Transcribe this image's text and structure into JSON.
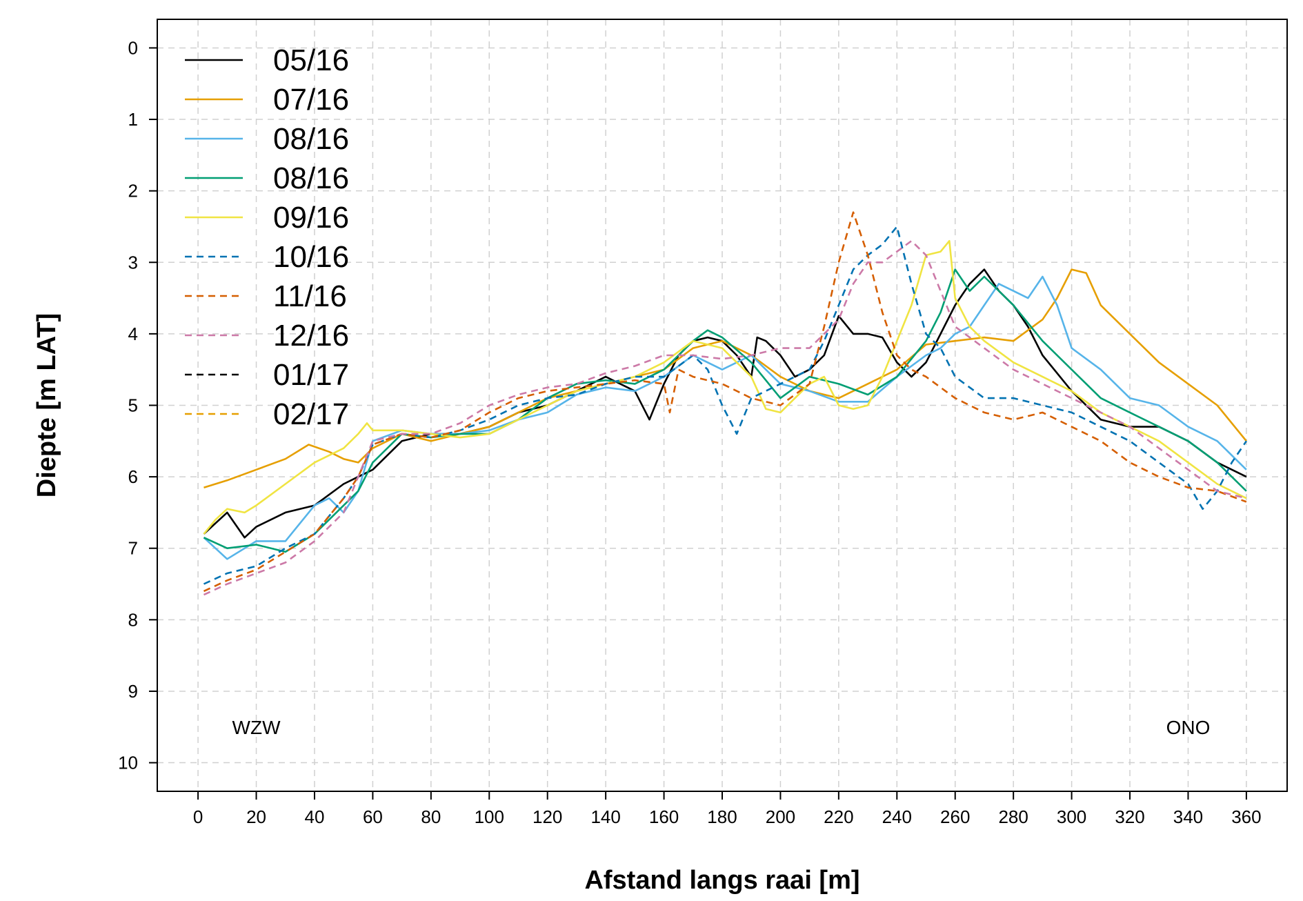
{
  "chart_data": {
    "type": "line",
    "title": "",
    "xlabel": "Afstand langs raai [m]",
    "ylabel": "Diepte [m LAT]",
    "xlim": [
      -14,
      374
    ],
    "ylim": [
      -0.4,
      10.4
    ],
    "y_inverted": true,
    "xticks": [
      0,
      20,
      40,
      60,
      80,
      100,
      120,
      140,
      160,
      180,
      200,
      220,
      240,
      260,
      280,
      300,
      320,
      340,
      360
    ],
    "yticks": [
      0,
      1,
      2,
      3,
      4,
      5,
      6,
      7,
      8,
      9,
      10
    ],
    "grid": true,
    "legend_position": "top-left",
    "annotations": [
      {
        "text": "WZW",
        "x": 20,
        "y": 9.5
      },
      {
        "text": "ONO",
        "x": 340,
        "y": 9.5
      }
    ],
    "series": [
      {
        "name": "05/16",
        "color": "#000000",
        "dash": "solid",
        "x": [
          2,
          10,
          16,
          20,
          30,
          40,
          50,
          55,
          60,
          70,
          80,
          90,
          100,
          110,
          120,
          130,
          140,
          150,
          155,
          160,
          165,
          170,
          175,
          180,
          185,
          190,
          192,
          195,
          200,
          205,
          210,
          215,
          220,
          225,
          230,
          235,
          240,
          245,
          250,
          255,
          260,
          265,
          270,
          275,
          280,
          285,
          290,
          300,
          310,
          320,
          330,
          340,
          350,
          360
        ],
        "y": [
          6.8,
          6.5,
          6.85,
          6.7,
          6.5,
          6.4,
          6.1,
          6.0,
          5.9,
          5.5,
          5.4,
          5.4,
          5.3,
          5.1,
          5.0,
          4.8,
          4.6,
          4.8,
          5.2,
          4.7,
          4.3,
          4.1,
          4.05,
          4.1,
          4.3,
          4.6,
          4.05,
          4.1,
          4.3,
          4.6,
          4.5,
          4.3,
          3.75,
          4.0,
          4.0,
          4.05,
          4.4,
          4.6,
          4.4,
          4.0,
          3.6,
          3.3,
          3.1,
          3.4,
          3.6,
          3.9,
          4.3,
          4.8,
          5.2,
          5.3,
          5.3,
          5.5,
          5.8,
          6.0
        ]
      },
      {
        "name": "07/16",
        "color": "#E69F00",
        "dash": "solid",
        "x": [
          2,
          10,
          20,
          30,
          38,
          45,
          50,
          55,
          60,
          70,
          80,
          90,
          100,
          110,
          120,
          130,
          140,
          150,
          160,
          170,
          180,
          190,
          200,
          210,
          220,
          230,
          240,
          250,
          260,
          270,
          280,
          290,
          295,
          300,
          305,
          310,
          320,
          330,
          340,
          350,
          360
        ],
        "y": [
          6.15,
          6.05,
          5.9,
          5.75,
          5.55,
          5.65,
          5.75,
          5.8,
          5.6,
          5.4,
          5.5,
          5.4,
          5.3,
          5.1,
          4.9,
          4.8,
          4.7,
          4.6,
          4.5,
          4.2,
          4.1,
          4.3,
          4.6,
          4.8,
          4.9,
          4.7,
          4.5,
          4.15,
          4.1,
          4.05,
          4.1,
          3.8,
          3.5,
          3.1,
          3.15,
          3.6,
          4.0,
          4.4,
          4.7,
          5.0,
          5.5
        ]
      },
      {
        "name": "08/16",
        "color": "#56B4E9",
        "dash": "solid",
        "x": [
          2,
          10,
          20,
          30,
          40,
          45,
          50,
          55,
          60,
          70,
          80,
          90,
          100,
          110,
          120,
          130,
          140,
          150,
          160,
          170,
          180,
          190,
          200,
          210,
          220,
          230,
          240,
          250,
          255,
          260,
          265,
          270,
          275,
          280,
          285,
          290,
          295,
          300,
          310,
          320,
          330,
          340,
          350,
          360
        ],
        "y": [
          6.85,
          7.15,
          6.9,
          6.9,
          6.4,
          6.3,
          6.5,
          6.2,
          5.5,
          5.35,
          5.4,
          5.4,
          5.35,
          5.2,
          5.1,
          4.85,
          4.75,
          4.8,
          4.6,
          4.3,
          4.5,
          4.3,
          4.7,
          4.8,
          4.95,
          4.95,
          4.6,
          4.3,
          4.2,
          4.0,
          3.9,
          3.6,
          3.3,
          3.4,
          3.5,
          3.2,
          3.6,
          4.2,
          4.5,
          4.9,
          5.0,
          5.3,
          5.5,
          5.9
        ]
      },
      {
        "name": "08/16",
        "color": "#009E73",
        "dash": "solid",
        "x": [
          2,
          10,
          20,
          30,
          40,
          50,
          55,
          60,
          70,
          80,
          90,
          100,
          110,
          120,
          130,
          140,
          150,
          160,
          170,
          175,
          180,
          190,
          200,
          210,
          220,
          230,
          240,
          250,
          255,
          260,
          265,
          270,
          280,
          290,
          300,
          310,
          320,
          330,
          340,
          350,
          360
        ],
        "y": [
          6.85,
          7.0,
          6.95,
          7.05,
          6.8,
          6.4,
          6.2,
          5.8,
          5.4,
          5.45,
          5.4,
          5.4,
          5.2,
          4.9,
          4.7,
          4.65,
          4.7,
          4.5,
          4.1,
          3.95,
          4.05,
          4.4,
          4.9,
          4.6,
          4.7,
          4.85,
          4.6,
          4.1,
          3.7,
          3.1,
          3.4,
          3.2,
          3.6,
          4.1,
          4.5,
          4.9,
          5.1,
          5.3,
          5.5,
          5.8,
          6.2
        ]
      },
      {
        "name": "09/16",
        "color": "#F0E442",
        "dash": "solid",
        "x": [
          2,
          6,
          10,
          16,
          20,
          30,
          40,
          50,
          55,
          58,
          60,
          70,
          80,
          90,
          100,
          110,
          120,
          130,
          140,
          150,
          160,
          170,
          180,
          190,
          195,
          200,
          205,
          210,
          215,
          220,
          225,
          230,
          235,
          240,
          245,
          250,
          255,
          258,
          260,
          265,
          270,
          280,
          290,
          300,
          310,
          320,
          330,
          340,
          350,
          360
        ],
        "y": [
          6.8,
          6.6,
          6.45,
          6.5,
          6.4,
          6.1,
          5.8,
          5.6,
          5.4,
          5.25,
          5.35,
          5.35,
          5.4,
          5.45,
          5.4,
          5.2,
          5.0,
          4.8,
          4.7,
          4.6,
          4.4,
          4.1,
          4.2,
          4.6,
          5.05,
          5.1,
          4.9,
          4.7,
          4.6,
          5.0,
          5.05,
          5.0,
          4.6,
          4.1,
          3.6,
          2.9,
          2.85,
          2.7,
          3.5,
          3.9,
          4.1,
          4.4,
          4.6,
          4.8,
          5.1,
          5.3,
          5.5,
          5.8,
          6.1,
          6.3
        ]
      },
      {
        "name": "10/16",
        "color": "#0072B2",
        "dash": "dashed",
        "x": [
          2,
          10,
          20,
          30,
          40,
          50,
          55,
          60,
          70,
          80,
          90,
          100,
          110,
          120,
          130,
          140,
          150,
          160,
          170,
          175,
          180,
          185,
          190,
          200,
          210,
          215,
          220,
          225,
          230,
          235,
          240,
          245,
          250,
          255,
          260,
          270,
          280,
          290,
          300,
          310,
          320,
          330,
          340,
          345,
          350,
          355,
          360
        ],
        "y": [
          7.5,
          7.35,
          7.25,
          7.0,
          6.8,
          6.3,
          6.0,
          5.55,
          5.4,
          5.45,
          5.35,
          5.2,
          5.0,
          4.9,
          4.85,
          4.7,
          4.6,
          4.6,
          4.3,
          4.5,
          5.0,
          5.4,
          4.9,
          4.7,
          4.5,
          4.1,
          3.6,
          3.1,
          2.9,
          2.75,
          2.5,
          3.3,
          4.0,
          4.2,
          4.6,
          4.9,
          4.9,
          5.0,
          5.1,
          5.3,
          5.5,
          5.8,
          6.1,
          6.45,
          6.2,
          5.8,
          5.5
        ]
      },
      {
        "name": "11/16",
        "color": "#D55E00",
        "dash": "dashed",
        "x": [
          2,
          10,
          20,
          30,
          40,
          50,
          55,
          60,
          70,
          80,
          90,
          100,
          110,
          120,
          130,
          140,
          150,
          160,
          162,
          165,
          170,
          180,
          190,
          200,
          210,
          215,
          220,
          225,
          230,
          235,
          240,
          245,
          250,
          260,
          270,
          280,
          290,
          300,
          310,
          320,
          330,
          340,
          350,
          360
        ],
        "y": [
          7.6,
          7.45,
          7.3,
          7.05,
          6.8,
          6.3,
          6.0,
          5.55,
          5.4,
          5.45,
          5.35,
          5.1,
          4.9,
          4.8,
          4.75,
          4.7,
          4.65,
          4.7,
          5.1,
          4.5,
          4.6,
          4.7,
          4.9,
          5.0,
          4.7,
          3.9,
          3.0,
          2.3,
          2.9,
          3.7,
          4.3,
          4.5,
          4.6,
          4.9,
          5.1,
          5.2,
          5.1,
          5.3,
          5.5,
          5.8,
          6.0,
          6.15,
          6.2,
          6.35
        ]
      },
      {
        "name": "12/16",
        "color": "#CC79A7",
        "dash": "dashed",
        "x": [
          2,
          10,
          20,
          30,
          40,
          50,
          55,
          60,
          70,
          80,
          90,
          100,
          110,
          120,
          130,
          140,
          150,
          160,
          170,
          180,
          190,
          200,
          210,
          215,
          220,
          225,
          230,
          235,
          240,
          245,
          250,
          255,
          260,
          270,
          280,
          290,
          300,
          310,
          320,
          330,
          340,
          350,
          360
        ],
        "y": [
          7.65,
          7.5,
          7.35,
          7.2,
          6.9,
          6.5,
          6.0,
          5.5,
          5.4,
          5.4,
          5.25,
          5.0,
          4.85,
          4.75,
          4.7,
          4.55,
          4.45,
          4.3,
          4.3,
          4.35,
          4.3,
          4.2,
          4.2,
          4.0,
          3.8,
          3.3,
          3.0,
          3.0,
          2.85,
          2.7,
          2.9,
          3.4,
          3.9,
          4.2,
          4.5,
          4.7,
          4.9,
          5.1,
          5.3,
          5.6,
          5.9,
          6.2,
          6.3
        ]
      },
      {
        "name": "01/17",
        "color": "#000000",
        "dash": "dashed",
        "x": [],
        "y": []
      },
      {
        "name": "02/17",
        "color": "#E69F00",
        "dash": "dashed",
        "x": [],
        "y": []
      }
    ]
  }
}
